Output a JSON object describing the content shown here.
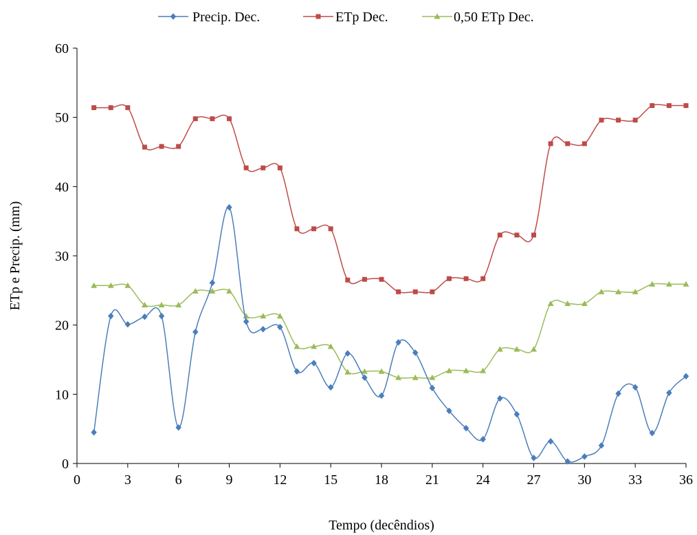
{
  "chart_data": {
    "type": "line",
    "title": "",
    "xlabel": "Tempo (decêndios)",
    "ylabel": "ETp e Precip. (mm)",
    "xlim": [
      0,
      36
    ],
    "ylim": [
      0,
      60
    ],
    "xticks": [
      0,
      3,
      6,
      9,
      12,
      15,
      18,
      21,
      24,
      27,
      30,
      33,
      36
    ],
    "yticks": [
      0,
      10,
      20,
      30,
      40,
      50,
      60
    ],
    "grid": false,
    "legend_position": "top",
    "x": [
      1,
      2,
      3,
      4,
      5,
      6,
      7,
      8,
      9,
      10,
      11,
      12,
      13,
      14,
      15,
      16,
      17,
      18,
      19,
      20,
      21,
      22,
      23,
      24,
      25,
      26,
      27,
      28,
      29,
      30,
      31,
      32,
      33,
      34,
      35,
      36
    ],
    "series": [
      {
        "name": "Precip. Dec.",
        "color": "#4a7ebb",
        "marker": "diamond",
        "values": [
          4.5,
          21.3,
          20.1,
          21.2,
          21.3,
          5.2,
          19.0,
          26.1,
          37.0,
          20.5,
          19.4,
          19.7,
          13.3,
          14.5,
          11.0,
          15.9,
          12.4,
          9.8,
          17.5,
          16.0,
          10.9,
          7.6,
          5.1,
          3.5,
          9.4,
          7.1,
          0.8,
          3.2,
          0.3,
          1.0,
          2.6,
          10.1,
          11.0,
          4.4,
          10.2,
          12.6
        ]
      },
      {
        "name": "ETp Dec.",
        "color": "#be4b48",
        "marker": "square",
        "values": [
          51.4,
          51.4,
          51.4,
          45.7,
          45.8,
          45.8,
          49.8,
          49.8,
          49.8,
          42.7,
          42.7,
          42.7,
          33.9,
          33.9,
          33.9,
          26.5,
          26.6,
          26.6,
          24.8,
          24.8,
          24.8,
          26.7,
          26.7,
          26.7,
          33.0,
          33.0,
          33.0,
          46.2,
          46.2,
          46.2,
          49.6,
          49.6,
          49.6,
          51.7,
          51.7,
          51.7
        ]
      },
      {
        "name": "0,50 ETp Dec.",
        "color": "#9bbb59",
        "marker": "triangle",
        "values": [
          25.7,
          25.7,
          25.7,
          22.9,
          22.9,
          22.9,
          24.9,
          24.9,
          24.9,
          21.3,
          21.3,
          21.3,
          16.9,
          16.9,
          16.9,
          13.2,
          13.3,
          13.3,
          12.4,
          12.4,
          12.4,
          13.4,
          13.4,
          13.4,
          16.5,
          16.5,
          16.5,
          23.1,
          23.1,
          23.1,
          24.8,
          24.8,
          24.8,
          25.9,
          25.9,
          25.9
        ]
      }
    ]
  }
}
